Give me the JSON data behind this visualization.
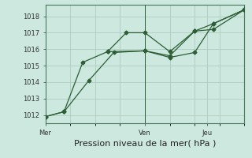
{
  "background_color": "#cce8df",
  "grid_color": "#b0ccbf",
  "line_color": "#2d5e35",
  "title": "Pression niveau de la mer( hPa )",
  "ylim": [
    1011.5,
    1018.7
  ],
  "yticks": [
    1012,
    1013,
    1014,
    1015,
    1016,
    1017,
    1018
  ],
  "xlim": [
    0,
    16
  ],
  "x_tick_positions": [
    0,
    8,
    13
  ],
  "x_tick_labels": [
    "Mer",
    "Ven",
    "Jeu"
  ],
  "vline_x": 8,
  "line1_x": [
    0,
    1.5,
    3.5,
    5.5,
    8,
    10,
    12,
    13.5,
    16
  ],
  "line1_y": [
    1011.9,
    1012.2,
    1014.1,
    1015.8,
    1015.9,
    1015.6,
    1017.1,
    1017.2,
    1018.4
  ],
  "line2_x": [
    0,
    1.5,
    3,
    5,
    6.5,
    8,
    10,
    12,
    13.5,
    16
  ],
  "line2_y": [
    1011.9,
    1012.2,
    1015.2,
    1015.85,
    1017.0,
    1017.0,
    1015.85,
    1017.1,
    1017.55,
    1018.4
  ],
  "line3_x": [
    5,
    8,
    10,
    12,
    13.5,
    16
  ],
  "line3_y": [
    1015.85,
    1015.9,
    1015.5,
    1015.8,
    1017.55,
    1018.4
  ],
  "marker_size": 2.5,
  "line_width": 0.9,
  "tick_fontsize": 6,
  "xlabel_fontsize": 8
}
